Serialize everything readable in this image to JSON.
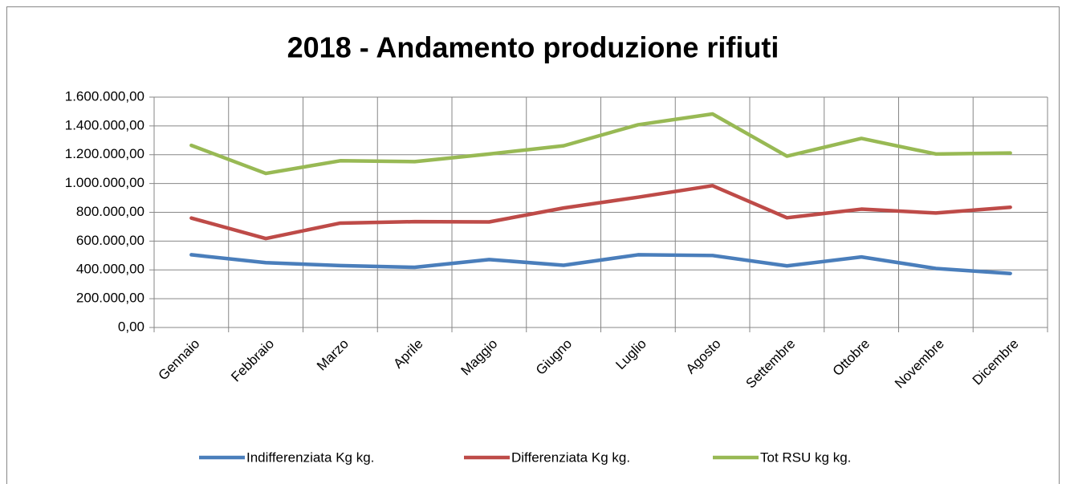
{
  "chart_data": {
    "type": "line",
    "title": "2018 - Andamento produzione rifiuti",
    "categories": [
      "Gennaio",
      "Febbraio",
      "Marzo",
      "Aprile",
      "Maggio",
      "Giugno",
      "Luglio",
      "Agosto",
      "Settembre",
      "Ottobre",
      "Novembre",
      "Dicembre"
    ],
    "series": [
      {
        "name": "Indifferenziata Kg kg.",
        "color": "#4a7ebb",
        "values": [
          505000,
          450000,
          430000,
          418000,
          472000,
          432000,
          505000,
          500000,
          428000,
          490000,
          410000,
          375000
        ]
      },
      {
        "name": "Differenziata Kg kg.",
        "color": "#be4b48",
        "values": [
          760000,
          618000,
          725000,
          735000,
          733000,
          830000,
          905000,
          985000,
          762000,
          822000,
          795000,
          835000
        ]
      },
      {
        "name": "Tot RSU kg kg.",
        "color": "#98b954",
        "values": [
          1265000,
          1070000,
          1158000,
          1152000,
          1205000,
          1262000,
          1408000,
          1483000,
          1190000,
          1313000,
          1205000,
          1212000
        ]
      }
    ],
    "ylim": [
      0,
      1600000
    ],
    "yticks": [
      {
        "value": 0,
        "label": "0,00"
      },
      {
        "value": 200000,
        "label": "200.000,00"
      },
      {
        "value": 400000,
        "label": "400.000,00"
      },
      {
        "value": 600000,
        "label": "600.000,00"
      },
      {
        "value": 800000,
        "label": "800.000,00"
      },
      {
        "value": 1000000,
        "label": "1.000.000,00"
      },
      {
        "value": 1200000,
        "label": "1.200.000,00"
      },
      {
        "value": 1400000,
        "label": "1.400.000,00"
      },
      {
        "value": 1600000,
        "label": "1.600.000,00"
      }
    ],
    "grid": true,
    "legend": "bottom"
  }
}
